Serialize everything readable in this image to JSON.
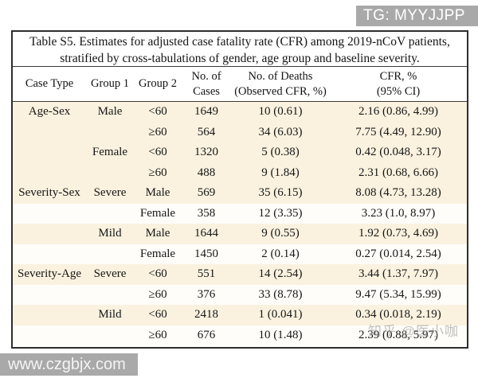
{
  "banner": {
    "text": "TG: MYYJJPP"
  },
  "watermark_bottom": {
    "text": "www.czgbjx.com"
  },
  "watermark_overlay": {
    "text": "知乎 @医小咖"
  },
  "colors": {
    "row_cream": "#faf2df",
    "row_white": "#fefdf9",
    "watermark_gray": "#a9a9a9",
    "border": "#2e2e2e"
  },
  "table": {
    "title_line1": "Table S5. Estimates for adjusted case fatality rate (CFR) among 2019-nCoV patients,",
    "title_line2": "stratified by cross-tabulations of gender, age group and baseline severity.",
    "headers": [
      {
        "line1": "Case Type",
        "line2": ""
      },
      {
        "line1": "Group 1",
        "line2": ""
      },
      {
        "line1": "Group 2",
        "line2": ""
      },
      {
        "line1": "No. of",
        "line2": "Cases"
      },
      {
        "line1": "No. of Deaths",
        "line2": "(Observed CFR, %)"
      },
      {
        "line1": "CFR, %",
        "line2": "(95% CI)"
      }
    ],
    "rows": [
      {
        "case_type": "Age-Sex",
        "group1": "Male",
        "group2": "<60",
        "cases": "1649",
        "deaths": "10 (0.61)",
        "cfr": "2.16 (0.86, 4.99)",
        "shade": "cream"
      },
      {
        "case_type": "",
        "group1": "",
        "group2": "≥60",
        "cases": "564",
        "deaths": "34 (6.03)",
        "cfr": "7.75 (4.49, 12.90)",
        "shade": "cream"
      },
      {
        "case_type": "",
        "group1": "Female",
        "group2": "<60",
        "cases": "1320",
        "deaths": "5 (0.38)",
        "cfr": "0.42 (0.048, 3.17)",
        "shade": "cream"
      },
      {
        "case_type": "",
        "group1": "",
        "group2": "≥60",
        "cases": "488",
        "deaths": "9 (1.84)",
        "cfr": "2.31 (0.68, 6.66)",
        "shade": "cream"
      },
      {
        "case_type": "Severity-Sex",
        "group1": "Severe",
        "group2": "Male",
        "cases": "569",
        "deaths": "35 (6.15)",
        "cfr": "8.08 (4.73, 13.28)",
        "shade": "cream"
      },
      {
        "case_type": "",
        "group1": "",
        "group2": "Female",
        "cases": "358",
        "deaths": "12 (3.35)",
        "cfr": "3.23 (1.0, 8.97)",
        "shade": "white"
      },
      {
        "case_type": "",
        "group1": "Mild",
        "group2": "Male",
        "cases": "1644",
        "deaths": "9 (0.55)",
        "cfr": "1.92 (0.73, 4.69)",
        "shade": "cream"
      },
      {
        "case_type": "",
        "group1": "",
        "group2": "Female",
        "cases": "1450",
        "deaths": "2 (0.14)",
        "cfr": "0.27 (0.014, 2.54)",
        "shade": "white"
      },
      {
        "case_type": "Severity-Age",
        "group1": "Severe",
        "group2": "<60",
        "cases": "551",
        "deaths": "14 (2.54)",
        "cfr": "3.44 (1.37, 7.97)",
        "shade": "cream"
      },
      {
        "case_type": "",
        "group1": "",
        "group2": "≥60",
        "cases": "376",
        "deaths": "33 (8.78)",
        "cfr": "9.47 (5.34, 15.99)",
        "shade": "white"
      },
      {
        "case_type": "",
        "group1": "Mild",
        "group2": "<60",
        "cases": "2418",
        "deaths": "1 (0.041)",
        "cfr": "0.34 (0.018, 2.19)",
        "shade": "cream"
      },
      {
        "case_type": "",
        "group1": "",
        "group2": "≥60",
        "cases": "676",
        "deaths": "10 (1.48)",
        "cfr": "2.39 (0.88, 5.97)",
        "shade": "white"
      }
    ]
  }
}
